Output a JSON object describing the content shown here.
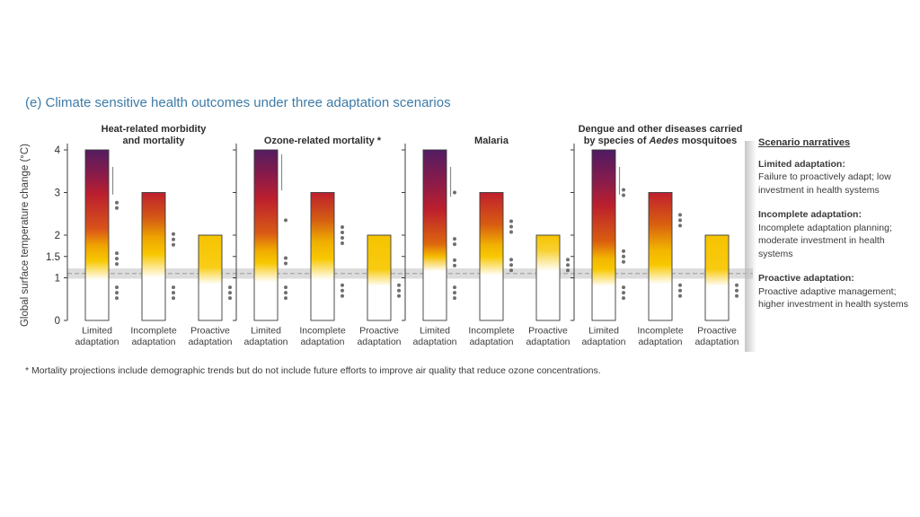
{
  "title": "(e) Climate sensitive health outcomes under three adaptation scenarios",
  "footnote": "* Mortality projections include demographic trends but do not include future efforts to improve air quality that reduce ozone concentrations.",
  "narratives": {
    "heading": "Scenario narratives",
    "items": [
      {
        "term": "Limited adaptation",
        "desc": "Failure to proactively adapt; low investment in health systems"
      },
      {
        "term": "Incomplete adaptation",
        "desc": "Incomplete adaptation planning; moderate investment in health systems"
      },
      {
        "term": "Proactive adaptation",
        "desc": "Proactive adaptive management; higher investment in health systems"
      }
    ]
  },
  "chart_data": {
    "type": "bar",
    "subtype": "burning-embers-risk",
    "ylabel": "Global surface temperature change (°C)",
    "ylim": [
      0,
      4.15
    ],
    "yticks": [
      {
        "v": 4,
        "label": "4"
      },
      {
        "v": 3,
        "label": "3"
      },
      {
        "v": 2,
        "label": "2"
      },
      {
        "v": 1.5,
        "label": "1.5"
      },
      {
        "v": 1,
        "label": "1"
      },
      {
        "v": 0,
        "label": "0"
      }
    ],
    "reference_band": {
      "from": 0.98,
      "to": 1.22
    },
    "reference_line": 1.1,
    "scenarios": [
      "Limited adaptation",
      "Incomplete adaptation",
      "Proactive adaptation"
    ],
    "risk_palette": {
      "undetectable": "#ffffff",
      "moderate": "#f8c800",
      "high": "#c01d2e",
      "very_high": "#531c60"
    },
    "panels": [
      {
        "title_lines": [
          [
            {
              "text": "Heat-related morbidity"
            }
          ],
          [
            {
              "text": "and mortality"
            }
          ]
        ],
        "bars": [
          {
            "scenario": "Limited adaptation",
            "top": 4,
            "gradient": [
              {
                "t": 4.0,
                "c": "#531c60"
              },
              {
                "t": 3.45,
                "c": "#871b4b"
              },
              {
                "t": 2.95,
                "c": "#bb1f2e"
              },
              {
                "t": 2.15,
                "c": "#d9531a"
              },
              {
                "t": 1.75,
                "c": "#efa400"
              },
              {
                "t": 1.4,
                "c": "#f8c800"
              },
              {
                "t": 0.95,
                "c": "#ffffff"
              },
              {
                "t": 0.0,
                "c": "#ffffff"
              }
            ],
            "lines": [
              [
                3.6,
                2.95
              ]
            ],
            "dots": [
              [
                2.7,
                2
              ],
              [
                1.45,
                3
              ],
              [
                0.65,
                3
              ]
            ]
          },
          {
            "scenario": "Incomplete adaptation",
            "top": 3,
            "gradient": [
              {
                "t": 3.0,
                "c": "#bf1f2d"
              },
              {
                "t": 2.4,
                "c": "#d45a15"
              },
              {
                "t": 1.95,
                "c": "#eda300"
              },
              {
                "t": 1.55,
                "c": "#f8c800"
              },
              {
                "t": 1.0,
                "c": "#ffffff"
              },
              {
                "t": 0.0,
                "c": "#ffffff"
              }
            ],
            "lines": [],
            "dots": [
              [
                1.9,
                3
              ],
              [
                0.65,
                3
              ]
            ]
          },
          {
            "scenario": "Proactive adaptation",
            "top": 2,
            "gradient": [
              {
                "t": 2.0,
                "c": "#f6c400"
              },
              {
                "t": 1.25,
                "c": "#f8cd15"
              },
              {
                "t": 0.85,
                "c": "#ffffff"
              },
              {
                "t": 0.0,
                "c": "#ffffff"
              }
            ],
            "lines": [],
            "dots": [
              [
                0.65,
                3
              ]
            ]
          }
        ]
      },
      {
        "title_lines": [
          [
            {
              "text": "Ozone-related mortality *"
            }
          ]
        ],
        "bars": [
          {
            "scenario": "Limited adaptation",
            "top": 4,
            "gradient": [
              {
                "t": 4.0,
                "c": "#531c60"
              },
              {
                "t": 3.4,
                "c": "#8a1b49"
              },
              {
                "t": 2.85,
                "c": "#bb1f2e"
              },
              {
                "t": 2.05,
                "c": "#d95a15"
              },
              {
                "t": 1.65,
                "c": "#efa900"
              },
              {
                "t": 1.35,
                "c": "#f8c800"
              },
              {
                "t": 0.9,
                "c": "#ffffff"
              },
              {
                "t": 0.0,
                "c": "#ffffff"
              }
            ],
            "lines": [
              [
                3.9,
                3.05
              ]
            ],
            "dots": [
              [
                2.35,
                1
              ],
              [
                1.4,
                2
              ],
              [
                0.65,
                3
              ]
            ]
          },
          {
            "scenario": "Incomplete adaptation",
            "top": 3,
            "gradient": [
              {
                "t": 3.0,
                "c": "#bf1f2d"
              },
              {
                "t": 2.35,
                "c": "#d45f13"
              },
              {
                "t": 1.85,
                "c": "#efae00"
              },
              {
                "t": 1.45,
                "c": "#f8c800"
              },
              {
                "t": 0.95,
                "c": "#ffffff"
              },
              {
                "t": 0.0,
                "c": "#ffffff"
              }
            ],
            "lines": [],
            "dots": [
              [
                2.0,
                4
              ],
              [
                0.7,
                3
              ]
            ]
          },
          {
            "scenario": "Proactive adaptation",
            "top": 2,
            "gradient": [
              {
                "t": 2.0,
                "c": "#f6c400"
              },
              {
                "t": 1.2,
                "c": "#f8cb10"
              },
              {
                "t": 0.8,
                "c": "#ffffff"
              },
              {
                "t": 0.0,
                "c": "#ffffff"
              }
            ],
            "lines": [],
            "dots": [
              [
                0.7,
                3
              ]
            ]
          }
        ]
      },
      {
        "title_lines": [
          [
            {
              "text": "Malaria"
            }
          ]
        ],
        "bars": [
          {
            "scenario": "Limited adaptation",
            "top": 4,
            "gradient": [
              {
                "t": 4.0,
                "c": "#521c62"
              },
              {
                "t": 3.25,
                "c": "#8a1b4a"
              },
              {
                "t": 2.6,
                "c": "#bc1f2d"
              },
              {
                "t": 1.8,
                "c": "#dd660e"
              },
              {
                "t": 1.5,
                "c": "#f5bd00"
              },
              {
                "t": 1.15,
                "c": "#ffffff"
              },
              {
                "t": 0.0,
                "c": "#ffffff"
              }
            ],
            "lines": [
              [
                3.6,
                2.9
              ]
            ],
            "dots": [
              [
                3.0,
                1
              ],
              [
                1.85,
                2
              ],
              [
                1.35,
                2
              ],
              [
                0.65,
                3
              ]
            ]
          },
          {
            "scenario": "Incomplete adaptation",
            "top": 3,
            "gradient": [
              {
                "t": 3.0,
                "c": "#bf1f2d"
              },
              {
                "t": 2.25,
                "c": "#d85c12"
              },
              {
                "t": 1.75,
                "c": "#f2b300"
              },
              {
                "t": 1.5,
                "c": "#f8c800"
              },
              {
                "t": 1.05,
                "c": "#ffffff"
              },
              {
                "t": 0.0,
                "c": "#ffffff"
              }
            ],
            "lines": [],
            "dots": [
              [
                2.2,
                3
              ],
              [
                1.3,
                3
              ]
            ]
          },
          {
            "scenario": "Proactive adaptation",
            "top": 2,
            "gradient": [
              {
                "t": 2.0,
                "c": "#f6c400"
              },
              {
                "t": 1.65,
                "c": "#f8d030"
              },
              {
                "t": 1.15,
                "c": "#ffffff"
              },
              {
                "t": 0.0,
                "c": "#ffffff"
              }
            ],
            "lines": [],
            "dots": [
              [
                1.3,
                3
              ]
            ]
          }
        ]
      },
      {
        "title_lines": [
          [
            {
              "text": "Dengue and other diseases carried"
            }
          ],
          [
            {
              "text": "by species of "
            },
            {
              "text": "Aedes",
              "italic": true
            },
            {
              "text": " mosquitoes"
            }
          ]
        ],
        "bars": [
          {
            "scenario": "Limited adaptation",
            "top": 4,
            "gradient": [
              {
                "t": 4.0,
                "c": "#4e1a62"
              },
              {
                "t": 3.3,
                "c": "#851c4e"
              },
              {
                "t": 2.7,
                "c": "#bb1f2e"
              },
              {
                "t": 1.85,
                "c": "#da5f10"
              },
              {
                "t": 1.45,
                "c": "#f3b600"
              },
              {
                "t": 1.2,
                "c": "#f8c800"
              },
              {
                "t": 0.8,
                "c": "#ffffff"
              },
              {
                "t": 0.0,
                "c": "#ffffff"
              }
            ],
            "lines": [
              [
                3.6,
                2.95
              ]
            ],
            "dots": [
              [
                3.0,
                2
              ],
              [
                1.5,
                3
              ],
              [
                0.65,
                3
              ]
            ]
          },
          {
            "scenario": "Incomplete adaptation",
            "top": 3,
            "gradient": [
              {
                "t": 3.0,
                "c": "#bf1f2d"
              },
              {
                "t": 2.25,
                "c": "#d96010"
              },
              {
                "t": 1.65,
                "c": "#f2b600"
              },
              {
                "t": 1.3,
                "c": "#f8c800"
              },
              {
                "t": 0.85,
                "c": "#ffffff"
              },
              {
                "t": 0.0,
                "c": "#ffffff"
              }
            ],
            "lines": [],
            "dots": [
              [
                2.35,
                3
              ],
              [
                0.7,
                3
              ]
            ]
          },
          {
            "scenario": "Proactive adaptation",
            "top": 2,
            "gradient": [
              {
                "t": 2.0,
                "c": "#f6c400"
              },
              {
                "t": 1.2,
                "c": "#f8ca10"
              },
              {
                "t": 0.8,
                "c": "#ffffff"
              },
              {
                "t": 0.0,
                "c": "#ffffff"
              }
            ],
            "lines": [],
            "dots": [
              [
                0.7,
                3
              ]
            ]
          }
        ]
      }
    ]
  }
}
